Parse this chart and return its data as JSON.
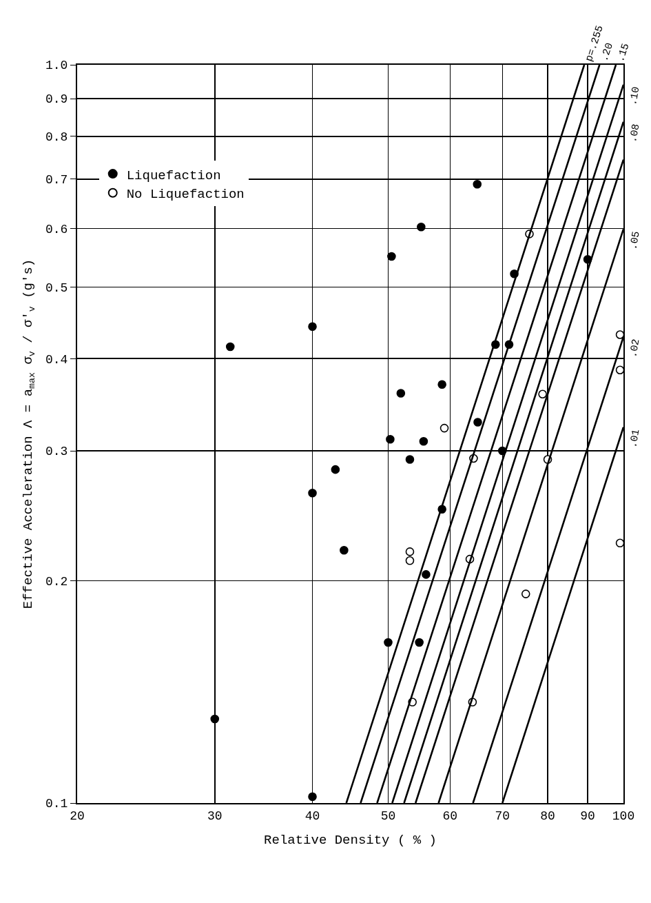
{
  "chart_data": {
    "type": "scatter",
    "xlabel": "Relative Density ( % )",
    "ylabel": "Effective Acceleration Λ = a$_{max}$ σ$_{v}$ / σ′$_{v}$ (g's)",
    "log": "xy",
    "grid": true,
    "legend": "top left",
    "xlim": [
      20,
      100
    ],
    "xticks": [
      20,
      30,
      40,
      50,
      60,
      70,
      80,
      90,
      100
    ],
    "ylim": [
      0.1,
      1.0
    ],
    "yticks": [
      0.1,
      0.2,
      0.3,
      0.4,
      0.5,
      0.6,
      0.7,
      0.8,
      0.9,
      {
        "value": 1.0,
        "label": "1.0"
      }
    ],
    "series": [
      {
        "name": "Liquefaction",
        "marker": "circle",
        "color": "#000000",
        "x": [
          30,
          31.4,
          40,
          40,
          42.8,
          43.9,
          40,
          50.5,
          50.3,
          50,
          51.9,
          55.1,
          53.3,
          55.5,
          55.9,
          54.8,
          58.6,
          58.6,
          65,
          65.1,
          72.5,
          68.6,
          71.4,
          70,
          90
        ],
        "values": [
          0.13,
          0.415,
          0.442,
          0.263,
          0.283,
          0.22,
          0.102,
          0.55,
          0.311,
          0.165,
          0.359,
          0.603,
          0.292,
          0.309,
          0.204,
          0.165,
          0.369,
          0.25,
          0.689,
          0.328,
          0.521,
          0.418,
          0.418,
          0.3,
          0.545
        ]
      },
      {
        "name": "No Liquefaction",
        "marker": "circle",
        "color": "#ffffff",
        "x": [
          75.8,
          99,
          99,
          78.8,
          59,
          64.3,
          80,
          99,
          53.3,
          53.3,
          63.6,
          75,
          53.7,
          64.1
        ],
        "values": [
          0.59,
          0.431,
          0.386,
          0.358,
          0.322,
          0.293,
          0.292,
          0.225,
          0.219,
          0.213,
          0.214,
          0.192,
          0.137,
          0.137
        ]
      },
      {
        "name": "p=.255",
        "type": "line",
        "color": "#000000",
        "x": [
          44.2,
          89.1
        ],
        "values": [
          0.1,
          1.0
        ]
      },
      {
        "name": ".20",
        "type": "line",
        "color": "#000000",
        "x": [
          46.1,
          93.2
        ],
        "values": [
          0.1,
          1.0
        ]
      },
      {
        "name": ".15",
        "type": "line",
        "color": "#000000",
        "x": [
          48.4,
          97.8
        ],
        "values": [
          0.1,
          1.0
        ]
      },
      {
        "name": ".10",
        "type": "line",
        "color": "#000000",
        "x": [
          50.6,
          100
        ],
        "values": [
          0.1,
          0.94
        ]
      },
      {
        "name": ".08",
        "type": "line",
        "color": "#000000",
        "x": [
          52.4,
          100
        ],
        "values": [
          0.1,
          0.837
        ]
      },
      {
        "type": "line",
        "color": "#000000",
        "x": [
          54.2,
          100
        ],
        "values": [
          0.1,
          0.744
        ]
      },
      {
        "name": ".05",
        "type": "line",
        "color": "#000000",
        "x": [
          58.0,
          100
        ],
        "values": [
          0.1,
          0.599
        ]
      },
      {
        "name": ".02",
        "type": "line",
        "color": "#000000",
        "x": [
          64.2,
          100
        ],
        "values": [
          0.1,
          0.428
        ]
      },
      {
        "name": ".01",
        "type": "line",
        "color": "#000000",
        "x": [
          70.0,
          100
        ],
        "values": [
          0.1,
          0.323
        ]
      }
    ]
  }
}
